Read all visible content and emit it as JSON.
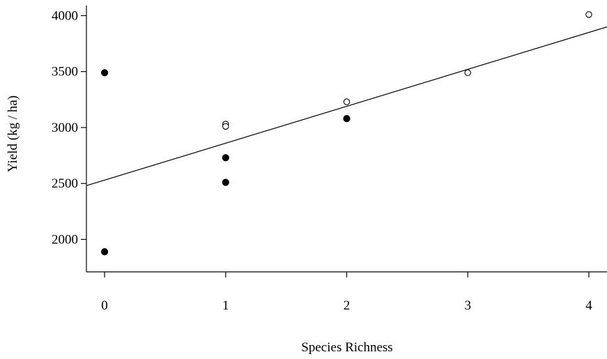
{
  "chart_data": {
    "type": "scatter",
    "title": "",
    "xlabel": "Species Richness",
    "ylabel": "Yield (kg / ha)",
    "xlim": [
      -0.15,
      4.15
    ],
    "ylim": [
      1710,
      4090
    ],
    "x_ticks": [
      0,
      1,
      2,
      3,
      4
    ],
    "x_tick_labels": [
      "0",
      "1",
      "2",
      "3",
      "4"
    ],
    "y_ticks": [
      2000,
      2500,
      3000,
      3500,
      4000
    ],
    "y_tick_labels": [
      "2000",
      "2500",
      "3000",
      "3500",
      "4000"
    ],
    "grid": false,
    "legend": "none",
    "series": [
      {
        "marker": "filled-circle",
        "color": "#000000",
        "points": [
          {
            "x": 0,
            "y": 3490
          },
          {
            "x": 0,
            "y": 1890
          },
          {
            "x": 1,
            "y": 2730
          },
          {
            "x": 1,
            "y": 2510
          },
          {
            "x": 2,
            "y": 3080
          }
        ]
      },
      {
        "marker": "open-circle",
        "color": "#000000",
        "points": [
          {
            "x": 1,
            "y": 3030
          },
          {
            "x": 1,
            "y": 3010
          },
          {
            "x": 2,
            "y": 3230
          },
          {
            "x": 3,
            "y": 3490
          },
          {
            "x": 4,
            "y": 4010
          }
        ]
      }
    ],
    "fit_line": {
      "type": "linear",
      "intercept": 2530,
      "slope": 330
    }
  }
}
